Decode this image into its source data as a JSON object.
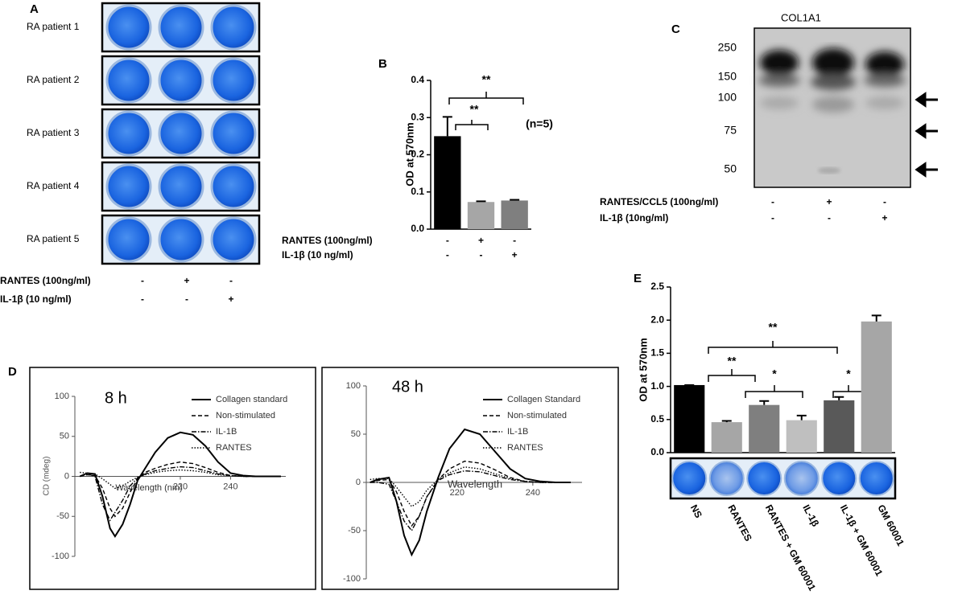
{
  "panel_a": {
    "label": "A",
    "rows": [
      "RA patient 1",
      "RA patient 2",
      "RA patient 3",
      "RA patient 4",
      "RA patient 5"
    ],
    "conditions": [
      {
        "label": "RANTES (100ng/ml)",
        "signs": [
          "-",
          "+",
          "-"
        ]
      },
      {
        "label": "IL-1β (10 ng/ml)",
        "signs": [
          "-",
          "-",
          "+"
        ]
      }
    ]
  },
  "panel_c": {
    "label": "C",
    "title": "COL1A1",
    "markers": [
      "250",
      "150",
      "100",
      "75",
      "50"
    ],
    "conditions": [
      {
        "label": "RANTES/CCL5 (100ng/ml)",
        "signs": [
          "-",
          "+",
          "-"
        ]
      },
      {
        "label": "IL-1β (10ng/ml)",
        "signs": [
          "-",
          "-",
          "+"
        ]
      }
    ]
  },
  "chart_data": [
    {
      "type": "bar",
      "panel_label": "B",
      "y_label": "OD at 570nm",
      "categories": [
        null,
        null,
        null
      ],
      "values": [
        0.25,
        0.073,
        0.077
      ],
      "errors": [
        0.052,
        0.002,
        0.002
      ],
      "colors": [
        "#000000",
        "#a6a6a6",
        "#7f7f7f"
      ],
      "ylim": [
        0,
        0.4
      ],
      "yticks": [
        {
          "value": 0,
          "label": "0.0"
        },
        0.1,
        0.2,
        0.3,
        0.4
      ],
      "annotations": [
        "**",
        "**",
        "(n=5)"
      ],
      "conditions": [
        {
          "label": "RANTES (100ng/ml)",
          "signs": [
            "-",
            "+",
            "-"
          ]
        },
        {
          "label": "IL-1β (10 ng/ml)",
          "signs": [
            "-",
            "-",
            "+"
          ]
        }
      ]
    },
    {
      "type": "line",
      "panel_label": "D",
      "title": "8 h",
      "x_label": "Wavelength (nm)",
      "y_label": "CD (mdeg)",
      "x": [
        180,
        183,
        186,
        189,
        192,
        194,
        197,
        200,
        203,
        206,
        210,
        215,
        220,
        225,
        230,
        235,
        240,
        245,
        250,
        255,
        260
      ],
      "series": [
        {
          "name": "Collagen standard",
          "color": "#000000",
          "dash": "solid",
          "values": [
            0,
            4,
            3,
            -25,
            -65,
            -75,
            -60,
            -35,
            -5,
            10,
            30,
            48,
            55,
            52,
            38,
            18,
            4,
            1,
            0,
            0,
            0
          ]
        },
        {
          "name": "Non-stimulated",
          "color": "#000000",
          "dash": "dashed",
          "values": [
            0,
            2,
            1,
            -15,
            -40,
            -50,
            -40,
            -20,
            -3,
            5,
            10,
            15,
            18,
            16,
            11,
            5,
            1,
            0,
            0,
            0,
            0
          ]
        },
        {
          "name": "IL-1B",
          "color": "#000000",
          "dash": "dashdot",
          "values": [
            0,
            3,
            0,
            -35,
            -55,
            -45,
            -30,
            -12,
            -2,
            3,
            7,
            10,
            12,
            11,
            7,
            3,
            1,
            0,
            0,
            0,
            0
          ]
        },
        {
          "name": "RANTES",
          "color": "#000000",
          "dash": "dotted",
          "values": [
            5,
            4,
            3,
            -3,
            -10,
            -15,
            -12,
            -6,
            -1,
            2,
            5,
            7,
            8,
            7,
            5,
            2,
            1,
            0,
            0,
            0,
            0
          ]
        }
      ],
      "xlim": [
        178,
        262
      ],
      "xticks": [
        220,
        240
      ],
      "ylim": [
        -100,
        100
      ],
      "yticks": [
        -100,
        -50,
        0,
        50,
        100
      ]
    },
    {
      "type": "line",
      "title": "48 h",
      "x_label": "Wavelength",
      "x": [
        197,
        199,
        202,
        204,
        206,
        208,
        210,
        212,
        215,
        218,
        222,
        226,
        230,
        234,
        238,
        242,
        246,
        250
      ],
      "series": [
        {
          "name": "Collagen Standard",
          "color": "#000000",
          "dash": "solid",
          "values": [
            0,
            3,
            5,
            -20,
            -55,
            -75,
            -60,
            -30,
            5,
            35,
            55,
            50,
            32,
            14,
            4,
            1,
            0,
            0
          ]
        },
        {
          "name": "Non-stimulated",
          "color": "#000000",
          "dash": "dashed",
          "values": [
            0,
            2,
            3,
            -10,
            -30,
            -45,
            -35,
            -15,
            3,
            14,
            22,
            20,
            13,
            5,
            1,
            0,
            0,
            0
          ]
        },
        {
          "name": "IL-1B",
          "color": "#000000",
          "dash": "dashdot",
          "values": [
            0,
            0,
            -2,
            -20,
            -40,
            -50,
            -35,
            -15,
            2,
            8,
            12,
            11,
            7,
            3,
            1,
            0,
            0,
            0
          ]
        },
        {
          "name": "RANTES",
          "color": "#000000",
          "dash": "dotted",
          "values": [
            3,
            4,
            4,
            -5,
            -15,
            -25,
            -20,
            -8,
            3,
            10,
            16,
            14,
            9,
            4,
            1,
            0,
            0,
            0
          ]
        }
      ],
      "xlim": [
        196,
        253
      ],
      "xticks": [
        220,
        240
      ],
      "ylim": [
        -100,
        100
      ],
      "yticks": [
        -100,
        -50,
        0,
        50,
        100
      ]
    },
    {
      "type": "bar",
      "panel_label": "E",
      "y_label": "OD at 570nm",
      "categories": [
        "NS",
        "RANTES",
        "RANTES + GM 60001",
        "IL-1β",
        "IL-1β + GM 60001",
        "GM 60001"
      ],
      "values": [
        1.02,
        0.46,
        0.72,
        0.49,
        0.79,
        1.98
      ],
      "errors": [
        0,
        0.02,
        0.06,
        0.07,
        0.05,
        0.09
      ],
      "colors": [
        "#000000",
        "#a6a6a6",
        "#7f7f7f",
        "#bfbfbf",
        "#595959",
        "#a6a6a6"
      ],
      "ylim": [
        0,
        2.5
      ],
      "yticks": [
        {
          "value": 0,
          "label": "0.0"
        },
        0.5,
        {
          "value": 1,
          "label": "1.0"
        },
        1.5,
        {
          "value": 2,
          "label": "2.0"
        },
        2.5
      ],
      "annotations": [
        "**",
        "**",
        "*",
        "*"
      ]
    }
  ]
}
